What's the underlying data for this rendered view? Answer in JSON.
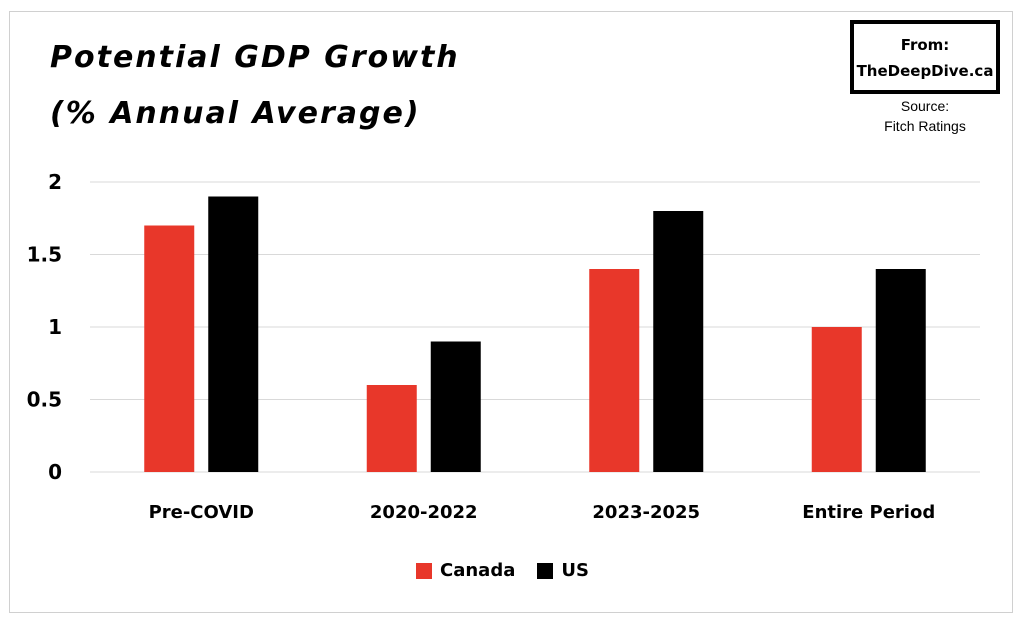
{
  "title_lines": [
    "Potential GDP Growth",
    "(% Annual Average)"
  ],
  "badge": {
    "line1": "From:",
    "line2": "TheDeepDive.ca"
  },
  "source": {
    "line1": "Source:",
    "line2": "Fitch Ratings"
  },
  "colors": {
    "canada": "#e8372a",
    "us": "#000000",
    "grid": "#d9d9d9"
  },
  "chart_data": {
    "type": "bar",
    "title": "Potential GDP Growth (% Annual Average)",
    "categories": [
      "Pre-COVID",
      "2020-2022",
      "2023-2025",
      "Entire Period"
    ],
    "series": [
      {
        "name": "Canada",
        "values": [
          1.7,
          0.6,
          1.4,
          1.0
        ]
      },
      {
        "name": "US",
        "values": [
          1.9,
          0.9,
          1.8,
          1.4
        ]
      }
    ],
    "yticks": [
      "0",
      "0.5",
      "1",
      "1.5",
      "2"
    ],
    "ylim": [
      0,
      2
    ],
    "grid": true,
    "legend": "bottom"
  }
}
